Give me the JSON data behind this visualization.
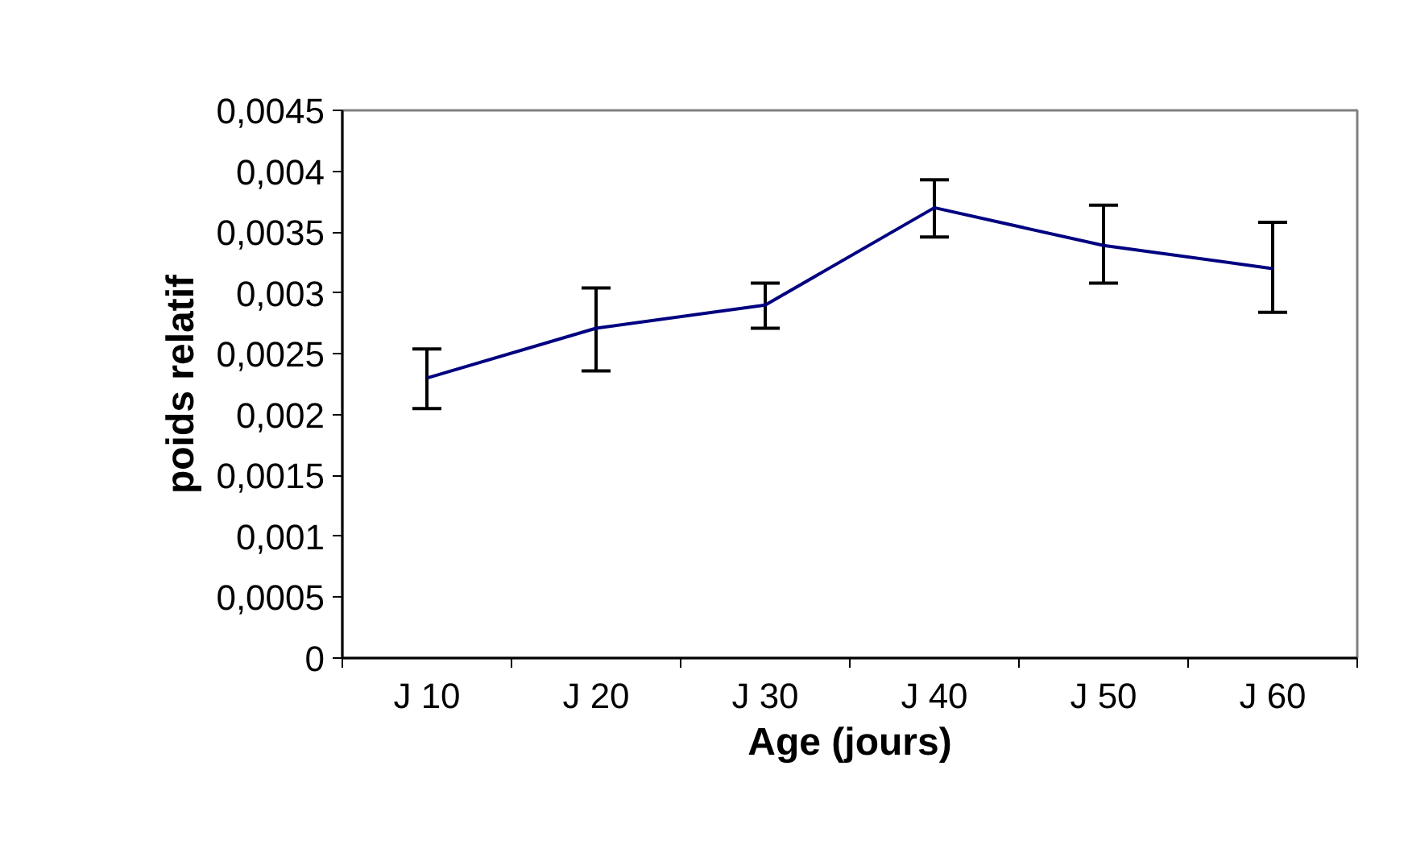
{
  "chart_data": {
    "type": "line",
    "xlabel": "Age (jours)",
    "ylabel": "poids relatif",
    "categories": [
      "J 10",
      "J 20",
      "J 30",
      "J 40",
      "J 50",
      "J 60"
    ],
    "series": [
      {
        "color": "#000080",
        "values": [
          0.0023,
          0.00271,
          0.0029,
          0.0037,
          0.00339,
          0.0032
        ],
        "errors": [
          [
            0.00205,
            0.00254
          ],
          [
            0.00236,
            0.00304
          ],
          [
            0.00271,
            0.00308
          ],
          [
            0.00346,
            0.00393
          ],
          [
            0.00308,
            0.00372
          ],
          [
            0.00284,
            0.00358
          ]
        ]
      }
    ],
    "ylim": [
      0,
      0.0045
    ],
    "yticks": [
      0,
      {
        "value": 0.0005,
        "label": "0,0005"
      },
      {
        "value": 0.001,
        "label": "0,001"
      },
      {
        "value": 0.0015,
        "label": "0,0015"
      },
      {
        "value": 0.002,
        "label": "0,002"
      },
      {
        "value": 0.0025,
        "label": "0,0025"
      },
      {
        "value": 0.003,
        "label": "0,003"
      },
      {
        "value": 0.0035,
        "label": "0,0035"
      },
      {
        "value": 0.004,
        "label": "0,004"
      },
      {
        "value": 0.0045,
        "label": "0,0045"
      }
    ],
    "grid": false,
    "marker": "none",
    "line_style": "solid"
  }
}
